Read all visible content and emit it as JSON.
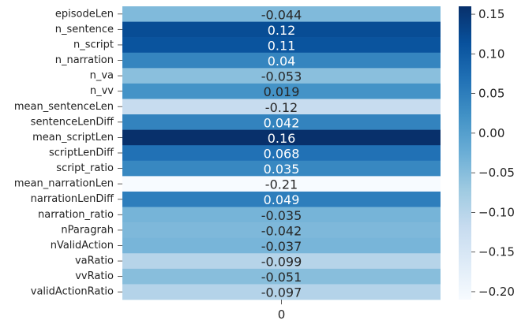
{
  "chart_data": {
    "type": "heatmap",
    "colormap": "Blues",
    "column_labels": [
      "0"
    ],
    "rows": [
      {
        "label": "episodeLen",
        "value": -0.044,
        "text": "-0.044"
      },
      {
        "label": "n_sentence",
        "value": 0.12,
        "text": "0.12"
      },
      {
        "label": "n_script",
        "value": 0.11,
        "text": "0.11"
      },
      {
        "label": "n_narration",
        "value": 0.04,
        "text": "0.04"
      },
      {
        "label": "n_va",
        "value": -0.053,
        "text": "-0.053"
      },
      {
        "label": "n_vv",
        "value": 0.019,
        "text": "0.019"
      },
      {
        "label": "mean_sentenceLen",
        "value": -0.12,
        "text": "-0.12"
      },
      {
        "label": "sentenceLenDiff",
        "value": 0.042,
        "text": "0.042"
      },
      {
        "label": "mean_scriptLen",
        "value": 0.16,
        "text": "0.16"
      },
      {
        "label": "scriptLenDiff",
        "value": 0.068,
        "text": "0.068"
      },
      {
        "label": "script_ratio",
        "value": 0.035,
        "text": "0.035"
      },
      {
        "label": "mean_narrationLen",
        "value": -0.21,
        "text": "-0.21"
      },
      {
        "label": "narrationLenDiff",
        "value": 0.049,
        "text": "0.049"
      },
      {
        "label": "narration_ratio",
        "value": -0.035,
        "text": "-0.035"
      },
      {
        "label": "nParagrah",
        "value": -0.042,
        "text": "-0.042"
      },
      {
        "label": "nValidAction",
        "value": -0.037,
        "text": "-0.037"
      },
      {
        "label": "vaRatio",
        "value": -0.099,
        "text": "-0.099"
      },
      {
        "label": "vvRatio",
        "value": -0.051,
        "text": "-0.051"
      },
      {
        "label": "validActionRatio",
        "value": -0.097,
        "text": "-0.097"
      }
    ],
    "colorbar": {
      "range": [
        -0.21,
        0.16
      ],
      "ticks": [
        0.15,
        0.1,
        0.05,
        0.0,
        -0.05,
        -0.1,
        -0.15,
        -0.2
      ],
      "tick_labels": [
        "0.15",
        "0.10",
        "0.05",
        "0.00",
        "−0.05",
        "−0.10",
        "−0.15",
        "−0.20"
      ]
    }
  }
}
